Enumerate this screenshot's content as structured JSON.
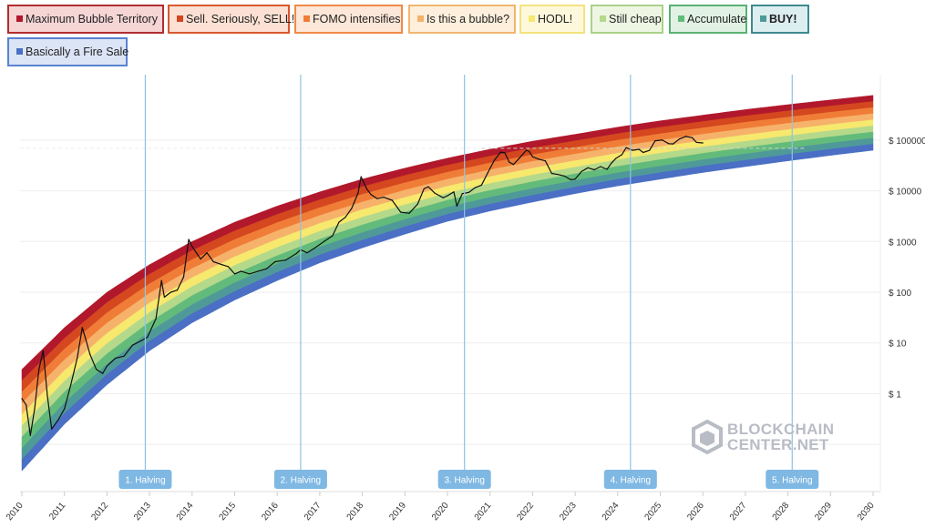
{
  "legend": [
    {
      "label": "Maximum Bubble Territory",
      "color": "#b2182b",
      "bg": "#f6d5d5",
      "border": "#b22d30"
    },
    {
      "label": "Sell. Seriously, SELL!",
      "color": "#d4471f",
      "bg": "#fbe0d3",
      "border": "#d9582d"
    },
    {
      "label": "FOMO intensifies",
      "color": "#f07d37",
      "bg": "#fde7d8",
      "border": "#ef8a45"
    },
    {
      "label": "Is this a bubble?",
      "color": "#f6b26b",
      "bg": "#fdefdc",
      "border": "#f2b66f"
    },
    {
      "label": "HODL!",
      "color": "#f7e86e",
      "bg": "#fdf8dc",
      "border": "#f4e27c"
    },
    {
      "label": "Still cheap",
      "color": "#b5d98a",
      "bg": "#eef6e3",
      "border": "#a9d28a"
    },
    {
      "label": "Accumulate",
      "color": "#63bb7b",
      "bg": "#e1f2e4",
      "border": "#5ab174"
    },
    {
      "label": "BUY!",
      "color": "#4f9a99",
      "bg": "#ddeef0",
      "border": "#3d8a8f",
      "bold": true
    },
    {
      "label": "Basically a Fire Sale",
      "color": "#4a6fc4",
      "bg": "#dce5f6",
      "border": "#5a83cf"
    }
  ],
  "watermark": {
    "line1": "BLOCKCHAIN",
    "line2": "CENTER.NET"
  },
  "chart_data": {
    "type": "line",
    "title": "",
    "xlabel": "",
    "ylabel": "",
    "y_scale": "log",
    "xlim": [
      2010,
      2030
    ],
    "x_ticks": [
      "2010",
      "2011",
      "2012",
      "2013",
      "2014",
      "2015",
      "2016",
      "2017",
      "2018",
      "2019",
      "2020",
      "2021",
      "2022",
      "2023",
      "2024",
      "2025",
      "2026",
      "2027",
      "2028",
      "2029",
      "2030"
    ],
    "y_ticks": [
      "$ 1",
      "$ 10",
      "$ 100",
      "$ 1000",
      "$ 10000",
      "$ 100000"
    ],
    "y_tick_values": [
      1,
      10,
      100,
      1000,
      10000,
      100000
    ],
    "rainbow_bands": [
      "Maximum Bubble Territory",
      "Sell. Seriously, SELL!",
      "FOMO intensifies",
      "Is this a bubble?",
      "HODL!",
      "Still cheap",
      "Accumulate",
      "BUY!",
      "Basically a Fire Sale"
    ],
    "band_colors": [
      "#b2182b",
      "#d4471f",
      "#f07d37",
      "#f6b26b",
      "#f7e86e",
      "#b5d98a",
      "#63bb7b",
      "#4f9a99",
      "#4a6fc4"
    ],
    "rainbow_bottom": [
      [
        2010.0,
        0.03
      ],
      [
        2011.0,
        0.25
      ],
      [
        2012.0,
        1.5
      ],
      [
        2013.0,
        7
      ],
      [
        2014.0,
        25
      ],
      [
        2015.0,
        70
      ],
      [
        2016.0,
        170
      ],
      [
        2017.0,
        380
      ],
      [
        2018.0,
        750
      ],
      [
        2019.0,
        1400
      ],
      [
        2020.0,
        2500
      ],
      [
        2021.0,
        4000
      ],
      [
        2022.0,
        6000
      ],
      [
        2023.0,
        8800
      ],
      [
        2024.0,
        12500
      ],
      [
        2025.0,
        17000
      ],
      [
        2026.0,
        23000
      ],
      [
        2027.0,
        30000
      ],
      [
        2028.0,
        39000
      ],
      [
        2029.0,
        50000
      ],
      [
        2030.0,
        63000
      ]
    ],
    "rainbow_top": [
      [
        2010.0,
        3
      ],
      [
        2011.0,
        20
      ],
      [
        2012.0,
        100
      ],
      [
        2013.0,
        350
      ],
      [
        2014.0,
        1000
      ],
      [
        2015.0,
        2400
      ],
      [
        2016.0,
        5000
      ],
      [
        2017.0,
        9500
      ],
      [
        2018.0,
        17000
      ],
      [
        2019.0,
        28000
      ],
      [
        2020.0,
        44000
      ],
      [
        2021.0,
        66000
      ],
      [
        2022.0,
        95000
      ],
      [
        2023.0,
        130000
      ],
      [
        2024.0,
        180000
      ],
      [
        2025.0,
        240000
      ],
      [
        2026.0,
        310000
      ],
      [
        2027.0,
        400000
      ],
      [
        2028.0,
        500000
      ],
      [
        2029.0,
        620000
      ],
      [
        2030.0,
        760000
      ]
    ],
    "series": [
      {
        "name": "",
        "color": "#111111",
        "points": [
          [
            2010.0,
            0.8
          ],
          [
            2010.1,
            0.6
          ],
          [
            2010.2,
            0.15
          ],
          [
            2010.3,
            0.5
          ],
          [
            2010.4,
            3
          ],
          [
            2010.5,
            7
          ],
          [
            2010.6,
            0.9
          ],
          [
            2010.7,
            0.2
          ],
          [
            2010.85,
            0.3
          ],
          [
            2011.0,
            0.5
          ],
          [
            2011.15,
            1.5
          ],
          [
            2011.3,
            5
          ],
          [
            2011.42,
            20
          ],
          [
            2011.5,
            12
          ],
          [
            2011.6,
            6
          ],
          [
            2011.75,
            3
          ],
          [
            2011.9,
            2.5
          ],
          [
            2012.0,
            3.5
          ],
          [
            2012.2,
            5
          ],
          [
            2012.4,
            5.5
          ],
          [
            2012.6,
            9
          ],
          [
            2012.8,
            11
          ],
          [
            2012.95,
            13
          ],
          [
            2013.15,
            30
          ],
          [
            2013.28,
            170
          ],
          [
            2013.35,
            80
          ],
          [
            2013.5,
            100
          ],
          [
            2013.65,
            110
          ],
          [
            2013.8,
            200
          ],
          [
            2013.92,
            1100
          ],
          [
            2014.0,
            800
          ],
          [
            2014.1,
            600
          ],
          [
            2014.2,
            450
          ],
          [
            2014.35,
            600
          ],
          [
            2014.5,
            400
          ],
          [
            2014.7,
            350
          ],
          [
            2014.85,
            320
          ],
          [
            2015.0,
            230
          ],
          [
            2015.15,
            260
          ],
          [
            2015.35,
            230
          ],
          [
            2015.55,
            260
          ],
          [
            2015.75,
            290
          ],
          [
            2015.95,
            400
          ],
          [
            2016.2,
            430
          ],
          [
            2016.45,
            580
          ],
          [
            2016.55,
            690
          ],
          [
            2016.7,
            600
          ],
          [
            2016.9,
            760
          ],
          [
            2017.1,
            1000
          ],
          [
            2017.3,
            1300
          ],
          [
            2017.45,
            2400
          ],
          [
            2017.6,
            3000
          ],
          [
            2017.75,
            4500
          ],
          [
            2017.9,
            9000
          ],
          [
            2017.97,
            19000
          ],
          [
            2018.1,
            11000
          ],
          [
            2018.2,
            8500
          ],
          [
            2018.35,
            7000
          ],
          [
            2018.5,
            7500
          ],
          [
            2018.7,
            6500
          ],
          [
            2018.9,
            3800
          ],
          [
            2019.1,
            3600
          ],
          [
            2019.3,
            5500
          ],
          [
            2019.45,
            11000
          ],
          [
            2019.55,
            12000
          ],
          [
            2019.7,
            9000
          ],
          [
            2019.9,
            7300
          ],
          [
            2020.0,
            8000
          ],
          [
            2020.15,
            9500
          ],
          [
            2020.22,
            5000
          ],
          [
            2020.35,
            8800
          ],
          [
            2020.5,
            9300
          ],
          [
            2020.65,
            11500
          ],
          [
            2020.8,
            13000
          ],
          [
            2020.95,
            23000
          ],
          [
            2021.1,
            40000
          ],
          [
            2021.25,
            58000
          ],
          [
            2021.35,
            56000
          ],
          [
            2021.45,
            37000
          ],
          [
            2021.55,
            33000
          ],
          [
            2021.7,
            45000
          ],
          [
            2021.85,
            63000
          ],
          [
            2021.92,
            60000
          ],
          [
            2022.0,
            47000
          ],
          [
            2022.15,
            42000
          ],
          [
            2022.3,
            39000
          ],
          [
            2022.45,
            22000
          ],
          [
            2022.6,
            21000
          ],
          [
            2022.75,
            19500
          ],
          [
            2022.9,
            16500
          ],
          [
            2023.0,
            17000
          ],
          [
            2023.15,
            24000
          ],
          [
            2023.3,
            28500
          ],
          [
            2023.45,
            26000
          ],
          [
            2023.6,
            30000
          ],
          [
            2023.75,
            26500
          ],
          [
            2023.85,
            35000
          ],
          [
            2023.95,
            43000
          ],
          [
            2024.1,
            52000
          ],
          [
            2024.2,
            71000
          ],
          [
            2024.35,
            63000
          ],
          [
            2024.5,
            66000
          ],
          [
            2024.6,
            57000
          ],
          [
            2024.75,
            63000
          ],
          [
            2024.88,
            97000
          ],
          [
            2025.05,
            100000
          ],
          [
            2025.2,
            85000
          ],
          [
            2025.3,
            84000
          ],
          [
            2025.45,
            105000
          ],
          [
            2025.6,
            118000
          ],
          [
            2025.75,
            112000
          ],
          [
            2025.85,
            90000
          ],
          [
            2026.0,
            88000
          ]
        ]
      }
    ],
    "halvings": [
      {
        "label": "1. Halving",
        "x": 2012.9
      },
      {
        "label": "2. Halving",
        "x": 2016.55
      },
      {
        "label": "3. Halving",
        "x": 2020.4
      },
      {
        "label": "4. Halving",
        "x": 2024.3
      },
      {
        "label": "5. Halving",
        "x": 2028.1
      }
    ],
    "reference_line": {
      "from": 2020.8,
      "to": 2028.4,
      "y": 69000
    },
    "grid": true,
    "legend_position": "top"
  }
}
